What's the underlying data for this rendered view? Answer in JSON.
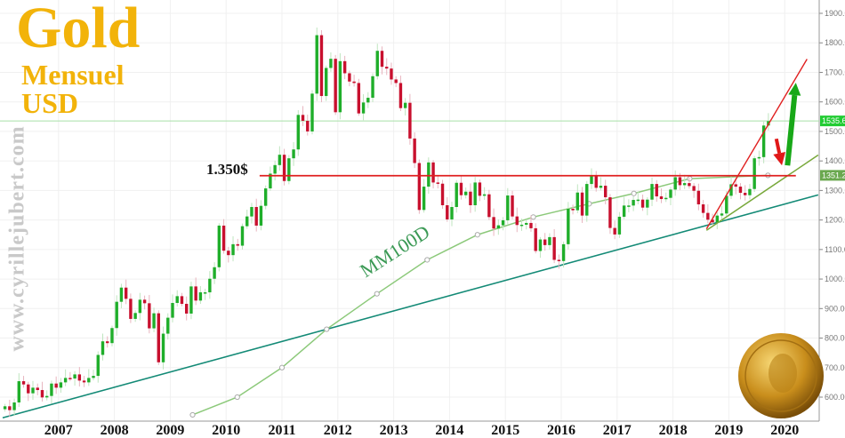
{
  "header": {
    "title": "Gold",
    "subtitle_1": "Mensuel",
    "subtitle_2": "USD"
  },
  "watermark": "www.cyrillejubert.com",
  "annotations": {
    "ma_label": "MM100D",
    "level_label": "1.350$"
  },
  "colors": {
    "up": "#1fae2a",
    "down": "#c8102e",
    "ma": "#8cc97a",
    "trend": "#138a76",
    "resistance": "#e02020",
    "title": "#f2b30a"
  },
  "chart_data": {
    "type": "candlestick",
    "title": "Gold Mensuel USD",
    "xlabel": "",
    "ylabel": "",
    "start": "2006-01",
    "ylim": [
      540,
      1920
    ],
    "y_ticks": [
      "600.00",
      "700.00",
      "800.00",
      "900.00",
      "1000.00",
      "1100.00",
      "1200.00",
      "1300.00",
      "1400.00",
      "1500.00",
      "1600.00",
      "1700.00",
      "1800.00",
      "1900.00"
    ],
    "x_ticks": [
      "2007",
      "2008",
      "2009",
      "2010",
      "2011",
      "2012",
      "2013",
      "2014",
      "2015",
      "2016",
      "2017",
      "2018",
      "2019",
      "2020"
    ],
    "monthly_close": [
      569,
      556,
      582,
      654,
      643,
      613,
      632,
      624,
      599,
      604,
      646,
      632,
      650,
      665,
      663,
      677,
      656,
      650,
      665,
      672,
      743,
      789,
      783,
      834,
      923,
      971,
      933,
      865,
      885,
      930,
      918,
      833,
      884,
      718,
      815,
      869,
      919,
      942,
      916,
      883,
      975,
      927,
      955,
      955,
      1001,
      1040,
      1181,
      1096,
      1081,
      1118,
      1113,
      1179,
      1212,
      1244,
      1181,
      1248,
      1307,
      1357,
      1386,
      1421,
      1332,
      1409,
      1439,
      1556,
      1536,
      1500,
      1628,
      1826,
      1620,
      1715,
      1746,
      1565,
      1738,
      1697,
      1669,
      1664,
      1561,
      1598,
      1614,
      1687,
      1773,
      1719,
      1713,
      1676,
      1664,
      1579,
      1597,
      1476,
      1393,
      1234,
      1313,
      1395,
      1327,
      1323,
      1250,
      1202,
      1244,
      1326,
      1284,
      1296,
      1250,
      1327,
      1282,
      1287,
      1210,
      1171,
      1182,
      1199,
      1283,
      1212,
      1183,
      1184,
      1190,
      1172,
      1095,
      1134,
      1115,
      1142,
      1065,
      1061,
      1118,
      1238,
      1233,
      1293,
      1215,
      1322,
      1351,
      1309,
      1316,
      1277,
      1173,
      1151,
      1211,
      1249,
      1249,
      1268,
      1269,
      1242,
      1269,
      1322,
      1280,
      1271,
      1275,
      1303,
      1345,
      1318,
      1325,
      1315,
      1299,
      1253,
      1224,
      1201,
      1192,
      1215,
      1222,
      1282,
      1321,
      1313,
      1292,
      1284,
      1305,
      1409,
      1413,
      1520,
      1535
    ],
    "ma100": {
      "name": "MM100D",
      "points": [
        [
          2009.4,
          540
        ],
        [
          2010.2,
          600
        ],
        [
          2011.0,
          700
        ],
        [
          2011.8,
          830
        ],
        [
          2012.7,
          950
        ],
        [
          2013.6,
          1065
        ],
        [
          2014.5,
          1150
        ],
        [
          2015.5,
          1210
        ],
        [
          2016.5,
          1255
        ],
        [
          2017.3,
          1290
        ],
        [
          2018.3,
          1340
        ],
        [
          2019.7,
          1351.2
        ]
      ]
    },
    "lines": [
      {
        "name": "long-term-trendline",
        "from": [
          2006.0,
          530
        ],
        "to": [
          2020.6,
          1285
        ]
      },
      {
        "name": "short-term-support",
        "from": [
          2018.6,
          1165
        ],
        "to": [
          2020.6,
          1420
        ]
      },
      {
        "name": "steep-trendline",
        "from": [
          2018.6,
          1170
        ],
        "to": [
          2020.4,
          1745
        ]
      },
      {
        "name": "resistance-1350",
        "from": [
          2010.6,
          1350
        ],
        "to": [
          2020.2,
          1350
        ]
      }
    ],
    "arrows": [
      {
        "name": "pullback-arrow",
        "from": [
          2019.85,
          1475
        ],
        "to": [
          2019.95,
          1385
        ],
        "color": "down"
      },
      {
        "name": "rally-arrow",
        "from": [
          2020.05,
          1385
        ],
        "to": [
          2020.2,
          1665
        ],
        "color": "up"
      }
    ],
    "price_badges": [
      {
        "label": "1535.6",
        "value": 1535.6,
        "color": "#22cc33"
      },
      {
        "label": "1351.2",
        "value": 1351.2,
        "color": "#6aa84f"
      }
    ]
  }
}
